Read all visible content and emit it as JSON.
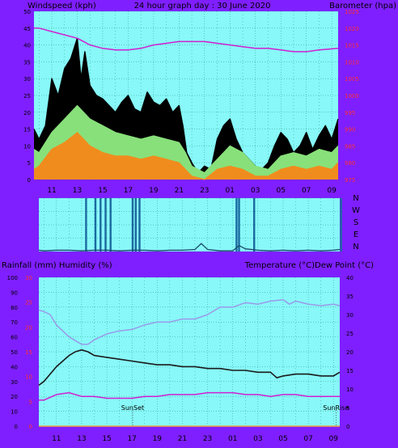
{
  "header": {
    "left": "Windspeed (kph)",
    "center": "24 hour graph day : 30 June 2020",
    "right": "Barometer (hpa)"
  },
  "lower_header": {
    "left": "Rainfall (mm)  Humidity (%)",
    "right": "Temperature (°C)Dew Point (°C)"
  },
  "colors": {
    "page_bg": "#7f1fff",
    "plot_bg": "#88f8f8",
    "grid": "#2a9c8c",
    "wind_gust": "#000000",
    "wind_avg_hi": "#88e07a",
    "wind_avg": "#f08c1e",
    "barometer": "#d020d0",
    "dir_fill": "#1a6aa0",
    "dir_line": "#1a4a68",
    "humidity": "#9a9aea",
    "temperature": "#1a1a1a",
    "dewpoint": "#d020d0",
    "rainfall": "#f0a040",
    "axis_red": "#ff3030"
  },
  "chart_data": [
    {
      "id": "wind-barometer",
      "type": "line",
      "x_ticks": [
        "11",
        "13",
        "15",
        "17",
        "19",
        "21",
        "23",
        "01",
        "03",
        "05",
        "07",
        "09"
      ],
      "y_left_ticks": [
        "0",
        "5",
        "10",
        "15",
        "20",
        "25",
        "30",
        "35",
        "40",
        "45",
        "50"
      ],
      "ylim_left": [
        0,
        50
      ],
      "y_right_ticks": [
        "975",
        "980",
        "985",
        "990",
        "995",
        "1000",
        "1005",
        "1010",
        "1015",
        "1020",
        "1025"
      ],
      "ylim_right": [
        975,
        1025
      ],
      "grid": true,
      "series": [
        {
          "key": "barometer",
          "x": [
            9.6,
            10,
            11,
            12,
            13,
            13.5,
            14,
            15,
            16,
            17,
            18,
            19,
            20,
            21,
            22,
            23,
            24,
            25,
            26,
            27,
            28,
            29,
            30,
            31,
            32,
            33.5
          ],
          "y": [
            1020,
            1020,
            1019,
            1018,
            1017,
            1016,
            1015,
            1014,
            1013.5,
            1013.5,
            1014,
            1015,
            1015.5,
            1016,
            1016,
            1016,
            1015.5,
            1015,
            1014.5,
            1014,
            1014,
            1013.5,
            1013,
            1013,
            1013.5,
            1014
          ]
        },
        {
          "key": "wind_gust",
          "x": [
            9.6,
            10,
            10.5,
            11,
            11.5,
            12,
            12.5,
            13,
            13.3,
            13.6,
            14,
            14.5,
            15,
            15.5,
            16,
            16.5,
            17,
            17.5,
            18,
            18.5,
            19,
            19.5,
            20,
            20.5,
            21,
            21.3,
            21.6,
            22,
            22.5,
            23,
            23.5,
            24,
            24.5,
            25,
            25.5,
            26,
            26.5,
            27,
            27.5,
            28,
            28.5,
            29,
            29.5,
            30,
            30.5,
            31,
            31.5,
            32,
            32.5,
            33,
            33.5
          ],
          "y": [
            15,
            12,
            16,
            30,
            25,
            33,
            36,
            42,
            30,
            38,
            28,
            25,
            24,
            22,
            20,
            23,
            25,
            21,
            20,
            26,
            23,
            22,
            24,
            20,
            22,
            16,
            8,
            5,
            2,
            4,
            3,
            12,
            16,
            18,
            12,
            8,
            6,
            4,
            3,
            5,
            10,
            14,
            12,
            8,
            10,
            14,
            9,
            13,
            16,
            12,
            18
          ]
        },
        {
          "key": "wind_avg_hi",
          "x": [
            9.6,
            10,
            11,
            12,
            13,
            14,
            15,
            16,
            17,
            18,
            19,
            20,
            21,
            21.5,
            22,
            23,
            24,
            25,
            26,
            27,
            28,
            29,
            30,
            31,
            32,
            33,
            33.5
          ],
          "y": [
            9,
            8,
            14,
            18,
            22,
            18,
            16,
            14,
            13,
            12,
            13,
            12,
            11,
            8,
            4,
            2,
            6,
            10,
            8,
            4,
            3,
            7,
            8,
            7,
            9,
            8,
            10
          ]
        },
        {
          "key": "wind_avg",
          "x": [
            9.6,
            10,
            11,
            12,
            13,
            14,
            15,
            16,
            17,
            18,
            19,
            20,
            21,
            21.5,
            22,
            23,
            24,
            25,
            26,
            27,
            28,
            29,
            30,
            31,
            32,
            33,
            33.5
          ],
          "y": [
            3,
            4,
            9,
            11,
            14,
            10,
            8,
            7,
            7,
            6,
            7,
            6,
            5,
            3,
            1,
            0,
            3,
            4,
            3,
            1,
            1,
            3,
            4,
            3,
            4,
            3,
            5
          ]
        }
      ]
    },
    {
      "id": "wind-direction",
      "type": "bar",
      "y_labels": [
        "N",
        "W",
        "S",
        "E",
        "N"
      ],
      "grid": true,
      "spike_x": [
        13.35,
        14.1,
        14.5,
        14.9,
        15.3,
        17.05,
        17.3,
        17.6,
        25.3,
        25.5,
        26.7,
        33.6
      ],
      "spike_dir": [
        4,
        4,
        4,
        4,
        4,
        4,
        4,
        4,
        4,
        4,
        4,
        4
      ],
      "trace_x": [
        9.6,
        10,
        11,
        12,
        13,
        14,
        15,
        16,
        17,
        18,
        19,
        20,
        21,
        22,
        22.5,
        23,
        24,
        25,
        25.5,
        26,
        27,
        28,
        29,
        30,
        31,
        32,
        33,
        33.5
      ],
      "trace_dir": [
        0.1,
        0.05,
        0.1,
        0.1,
        0.05,
        0.1,
        0.1,
        0.05,
        0.1,
        0.1,
        0.05,
        0.1,
        0.1,
        0.15,
        0.6,
        0.15,
        0.05,
        0.05,
        0.45,
        0.2,
        0.1,
        0.05,
        0.1,
        0.05,
        0.1,
        0.05,
        0.1,
        0.15
      ]
    },
    {
      "id": "humidity-temperature",
      "type": "line",
      "x_ticks": [
        "11",
        "13",
        "15",
        "17",
        "19",
        "21",
        "23",
        "01",
        "03",
        "05",
        "07",
        "09"
      ],
      "y_left_ticks": [
        "0",
        "10",
        "20",
        "30",
        "40",
        "50",
        "60",
        "70",
        "80",
        "90",
        "100"
      ],
      "ylim_left": [
        0,
        100
      ],
      "rain_ticks": [
        "0",
        "5",
        "10",
        "15",
        "20",
        "25",
        "30"
      ],
      "ylim_rain": [
        0,
        30
      ],
      "y_right_ticks": [
        "0",
        "5",
        "10",
        "15",
        "20",
        "25",
        "30",
        "35",
        "40"
      ],
      "ylim_right": [
        0,
        40
      ],
      "annotations": [
        {
          "x": 17.05,
          "label": "SunSet"
        },
        {
          "x": 33.2,
          "label": "SunRise"
        }
      ],
      "grid": true,
      "series": [
        {
          "key": "humidity",
          "x": [
            9.6,
            10,
            10.5,
            11,
            12,
            13,
            13.5,
            14,
            15,
            16,
            17,
            18,
            19,
            20,
            21,
            22,
            23,
            24,
            25,
            26,
            27,
            28,
            29,
            29.5,
            30,
            31,
            32,
            33,
            33.5
          ],
          "y": [
            78,
            77,
            75,
            68,
            60,
            55,
            55,
            58,
            62,
            64,
            65,
            68,
            70,
            70,
            72,
            72,
            75,
            80,
            80,
            83,
            82,
            84,
            85,
            82,
            84,
            82,
            81,
            82,
            81
          ]
        },
        {
          "key": "temperature",
          "x": [
            9.6,
            10,
            11,
            12,
            12.5,
            13,
            13.5,
            14,
            15,
            16,
            17,
            18,
            19,
            20,
            21,
            22,
            23,
            24,
            25,
            26,
            27,
            28,
            28.5,
            29,
            30,
            31,
            32,
            33,
            33.5
          ],
          "y": [
            11,
            12,
            16,
            19,
            20,
            20.5,
            20,
            19,
            18.5,
            18,
            17.5,
            17,
            16.5,
            16.5,
            16,
            16,
            15.5,
            15.5,
            15,
            15,
            14.5,
            14.5,
            13,
            13.5,
            14,
            14,
            13.5,
            13.5,
            14.5
          ]
        },
        {
          "key": "dewpoint",
          "x": [
            9.6,
            10,
            11,
            12,
            13,
            14,
            15,
            16,
            17,
            18,
            19,
            20,
            21,
            22,
            23,
            24,
            25,
            26,
            27,
            28,
            29,
            30,
            31,
            32,
            33,
            33.5
          ],
          "y": [
            7,
            7,
            8.5,
            9,
            8,
            8,
            7.5,
            7.5,
            7.5,
            8,
            8,
            8.5,
            8.5,
            8.5,
            9,
            9,
            9,
            8.5,
            8.5,
            8,
            8.5,
            8.5,
            8,
            8,
            8,
            8
          ]
        },
        {
          "key": "rainfall",
          "x": [
            9.6,
            33.5
          ],
          "y": [
            0,
            0
          ]
        }
      ]
    }
  ]
}
